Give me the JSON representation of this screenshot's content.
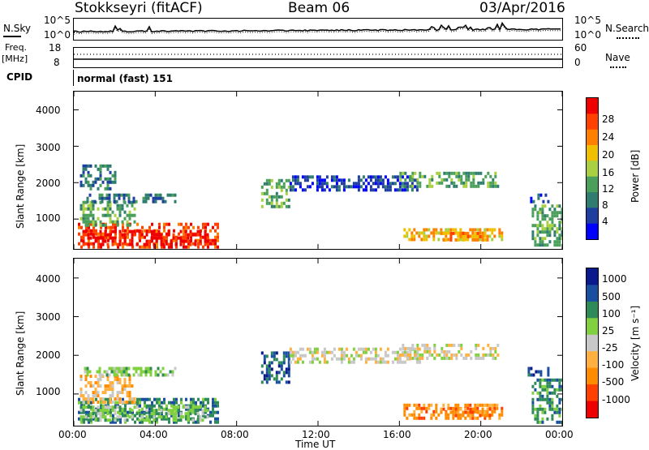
{
  "header": {
    "station": "Stokkseyri (fitACF)",
    "beam": "Beam 06",
    "date": "03/Apr/2016"
  },
  "summary": {
    "nsky_label": "N.Sky",
    "nsearch_label": "N.Search",
    "freq_label_1": "Freq.",
    "freq_label_2": "[MHz]",
    "nave_label": "Nave",
    "cpid_label": "CPID",
    "cpid_value": "normal (fast) 151",
    "noise_ticks_left": [
      "10^5",
      "10^0"
    ],
    "noise_ticks_right": [
      "10^5",
      "10^0"
    ],
    "freq_ticks": [
      "18",
      "8"
    ],
    "nave_ticks": [
      "60",
      "0"
    ]
  },
  "colors": {
    "power": [
      "#0000ff",
      "#1f3fa0",
      "#2e7d6e",
      "#4aa05a",
      "#a8d040",
      "#f0c000",
      "#ff8000",
      "#ff4000",
      "#ee0000"
    ],
    "velocity": [
      "#ee0000",
      "#ff4000",
      "#ff8c00",
      "#ffb040",
      "#c8c8c8",
      "#80d040",
      "#2e8b57",
      "#1a4fa0",
      "#0a1a8c"
    ]
  },
  "chart_data": [
    {
      "type": "heatmap",
      "name": "power",
      "ylabel": "Slant Range [km]",
      "ylim": [
        180,
        4500
      ],
      "yticks": [
        "1000",
        "2000",
        "3000",
        "4000"
      ],
      "x_ticks": [
        "00:00",
        "04:00",
        "08:00",
        "12:00",
        "16:00",
        "20:00",
        "00:00"
      ],
      "xlim_hours": [
        0,
        24
      ],
      "colorbar_label": "Power [dB]",
      "colorbar_ticks": [
        "4",
        "8",
        "12",
        "16",
        "20",
        "24",
        "28"
      ],
      "regions": [
        {
          "t": [
            0.2,
            7.1
          ],
          "r": [
            250,
            900
          ],
          "level": 7
        },
        {
          "t": [
            0.3,
            6.6
          ],
          "r": [
            300,
            700
          ],
          "level": 8
        },
        {
          "t": [
            0.3,
            3.0
          ],
          "r": [
            800,
            1500
          ],
          "level": 3
        },
        {
          "t": [
            0.5,
            5.0
          ],
          "r": [
            1500,
            1700
          ],
          "level": 2
        },
        {
          "t": [
            0.3,
            2.0
          ],
          "r": [
            1800,
            2500
          ],
          "level": 2
        },
        {
          "t": [
            9.2,
            10.6
          ],
          "r": [
            1300,
            2100
          ],
          "level": 3
        },
        {
          "t": [
            10.6,
            17.0
          ],
          "r": [
            1800,
            2200
          ],
          "level": 1
        },
        {
          "t": [
            16.0,
            20.8
          ],
          "r": [
            1900,
            2300
          ],
          "level": 3
        },
        {
          "t": [
            16.2,
            21.0
          ],
          "r": [
            400,
            750
          ],
          "level": 5
        },
        {
          "t": [
            18.0,
            20.5
          ],
          "r": [
            450,
            650
          ],
          "level": 6
        },
        {
          "t": [
            22.5,
            24.0
          ],
          "r": [
            300,
            1400
          ],
          "level": 3
        },
        {
          "t": [
            22.3,
            23.3
          ],
          "r": [
            1500,
            1700
          ],
          "level": 1
        }
      ]
    },
    {
      "type": "heatmap",
      "name": "velocity",
      "ylabel": "Slant Range [km]",
      "ylim": [
        180,
        4500
      ],
      "yticks": [
        "1000",
        "2000",
        "3000",
        "4000"
      ],
      "x_ticks": [
        "00:00",
        "04:00",
        "08:00",
        "12:00",
        "16:00",
        "20:00",
        "00:00"
      ],
      "xlim_hours": [
        0,
        24
      ],
      "xlabel": "Time UT",
      "colorbar_label": "Velocity [m s⁻¹]",
      "colorbar_ticks": [
        "1000",
        "500",
        "100",
        "25",
        "-25",
        "-100",
        "-500",
        "-1000"
      ],
      "regions": [
        {
          "t": [
            0.2,
            7.1
          ],
          "r": [
            250,
            900
          ],
          "level": 6
        },
        {
          "t": [
            0.3,
            6.6
          ],
          "r": [
            300,
            700
          ],
          "level": 5
        },
        {
          "t": [
            0.3,
            3.0
          ],
          "r": [
            800,
            1500
          ],
          "level": 3
        },
        {
          "t": [
            0.5,
            5.0
          ],
          "r": [
            1500,
            1700
          ],
          "level": 5
        },
        {
          "t": [
            9.2,
            10.6
          ],
          "r": [
            1300,
            2100
          ],
          "level": 7
        },
        {
          "t": [
            10.6,
            17.0
          ],
          "r": [
            1800,
            2200
          ],
          "level": 4
        },
        {
          "t": [
            16.0,
            20.8
          ],
          "r": [
            1900,
            2300
          ],
          "level": 4
        },
        {
          "t": [
            16.2,
            21.0
          ],
          "r": [
            400,
            750
          ],
          "level": 2
        },
        {
          "t": [
            18.0,
            20.5
          ],
          "r": [
            450,
            650
          ],
          "level": 2
        },
        {
          "t": [
            22.5,
            24.0
          ],
          "r": [
            300,
            1400
          ],
          "level": 6
        },
        {
          "t": [
            22.3,
            23.3
          ],
          "r": [
            1500,
            1700
          ],
          "level": 7
        }
      ]
    }
  ]
}
